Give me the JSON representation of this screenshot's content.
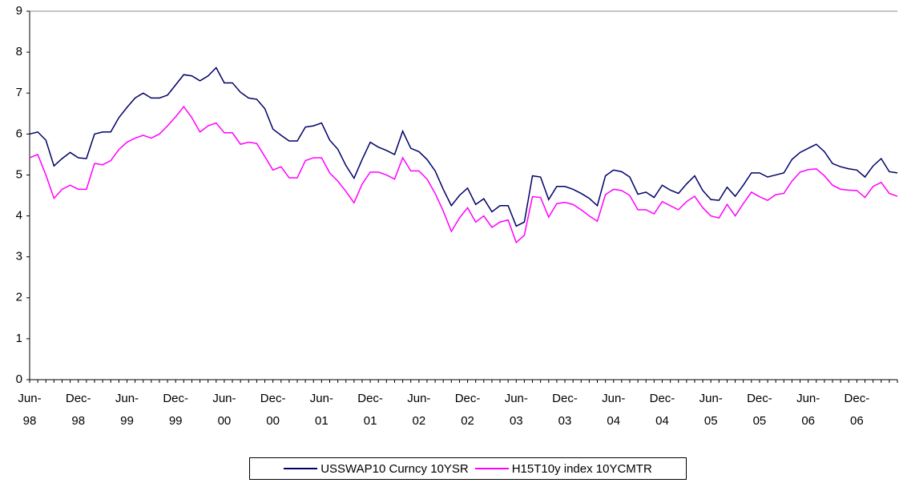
{
  "chart_data": {
    "type": "line",
    "categories": [
      "Jun-98",
      null,
      null,
      null,
      null,
      null,
      "Dec-98",
      null,
      null,
      null,
      null,
      null,
      "Jun-99",
      null,
      null,
      null,
      null,
      null,
      "Dec-99",
      null,
      null,
      null,
      null,
      null,
      "Jun-00",
      null,
      null,
      null,
      null,
      null,
      "Dec-00",
      null,
      null,
      null,
      null,
      null,
      "Jun-01",
      null,
      null,
      null,
      null,
      null,
      "Dec-01",
      null,
      null,
      null,
      null,
      null,
      "Jun-02",
      null,
      null,
      null,
      null,
      null,
      "Dec-02",
      null,
      null,
      null,
      null,
      null,
      "Jun-03",
      null,
      null,
      null,
      null,
      null,
      "Dec-03",
      null,
      null,
      null,
      null,
      null,
      "Jun-04",
      null,
      null,
      null,
      null,
      null,
      "Dec-04",
      null,
      null,
      null,
      null,
      null,
      "Jun-05",
      null,
      null,
      null,
      null,
      null,
      "Dec-05",
      null,
      null,
      null,
      null,
      null,
      "Jun-06",
      null,
      null,
      null,
      null,
      null,
      "Dec-06",
      null,
      null,
      null,
      null,
      null
    ],
    "series": [
      {
        "name": "USSWAP10 Curncy 10YSR",
        "color": "#000066",
        "values": [
          6.0,
          6.05,
          5.85,
          5.22,
          5.4,
          5.55,
          5.42,
          5.4,
          6.0,
          6.05,
          6.05,
          6.4,
          6.65,
          6.88,
          7.0,
          6.88,
          6.88,
          6.95,
          7.2,
          7.45,
          7.42,
          7.3,
          7.42,
          7.62,
          7.25,
          7.25,
          7.02,
          6.88,
          6.85,
          6.62,
          6.12,
          5.97,
          5.83,
          5.83,
          6.17,
          6.2,
          6.27,
          5.85,
          5.63,
          5.23,
          4.92,
          5.38,
          5.8,
          5.68,
          5.6,
          5.5,
          6.07,
          5.65,
          5.57,
          5.38,
          5.1,
          4.65,
          4.25,
          4.5,
          4.68,
          4.28,
          4.42,
          4.1,
          4.25,
          4.25,
          3.75,
          3.85,
          4.98,
          4.95,
          4.4,
          4.72,
          4.72,
          4.65,
          4.55,
          4.43,
          4.25,
          4.98,
          5.12,
          5.08,
          4.95,
          4.53,
          4.58,
          4.45,
          4.75,
          4.63,
          4.55,
          4.78,
          4.98,
          4.62,
          4.4,
          4.38,
          4.7,
          4.48,
          4.75,
          5.05,
          5.05,
          4.95,
          5.0,
          5.05,
          5.38,
          5.55,
          5.65,
          5.75,
          5.57,
          5.28,
          5.2,
          5.15,
          5.12,
          4.95,
          5.22,
          5.4,
          5.08,
          5.05
        ]
      },
      {
        "name": "H15T10y index 10YCMTR",
        "color": "#ff00ff",
        "values": [
          5.42,
          5.5,
          5.0,
          4.43,
          4.65,
          4.75,
          4.65,
          4.65,
          5.28,
          5.25,
          5.35,
          5.62,
          5.8,
          5.9,
          5.97,
          5.9,
          6.0,
          6.2,
          6.42,
          6.67,
          6.4,
          6.05,
          6.2,
          6.27,
          6.03,
          6.03,
          5.75,
          5.8,
          5.77,
          5.45,
          5.12,
          5.2,
          4.93,
          4.93,
          5.35,
          5.42,
          5.42,
          5.05,
          4.85,
          4.6,
          4.32,
          4.78,
          5.07,
          5.07,
          5.0,
          4.9,
          5.42,
          5.1,
          5.1,
          4.9,
          4.55,
          4.12,
          3.62,
          3.95,
          4.2,
          3.85,
          4.0,
          3.72,
          3.85,
          3.9,
          3.35,
          3.53,
          4.47,
          4.45,
          3.97,
          4.3,
          4.33,
          4.28,
          4.15,
          4.0,
          3.87,
          4.52,
          4.65,
          4.62,
          4.5,
          4.15,
          4.15,
          4.05,
          4.35,
          4.25,
          4.15,
          4.35,
          4.48,
          4.2,
          4.0,
          3.95,
          4.28,
          4.0,
          4.3,
          4.58,
          4.47,
          4.38,
          4.52,
          4.55,
          4.85,
          5.07,
          5.13,
          5.15,
          4.98,
          4.75,
          4.65,
          4.63,
          4.62,
          4.45,
          4.72,
          4.82,
          4.55,
          4.48
        ]
      }
    ],
    "ylim": [
      0,
      9
    ],
    "yticks": [
      0,
      1,
      2,
      3,
      4,
      5,
      6,
      7,
      8,
      9
    ],
    "grid": false,
    "legend": "bottom"
  }
}
